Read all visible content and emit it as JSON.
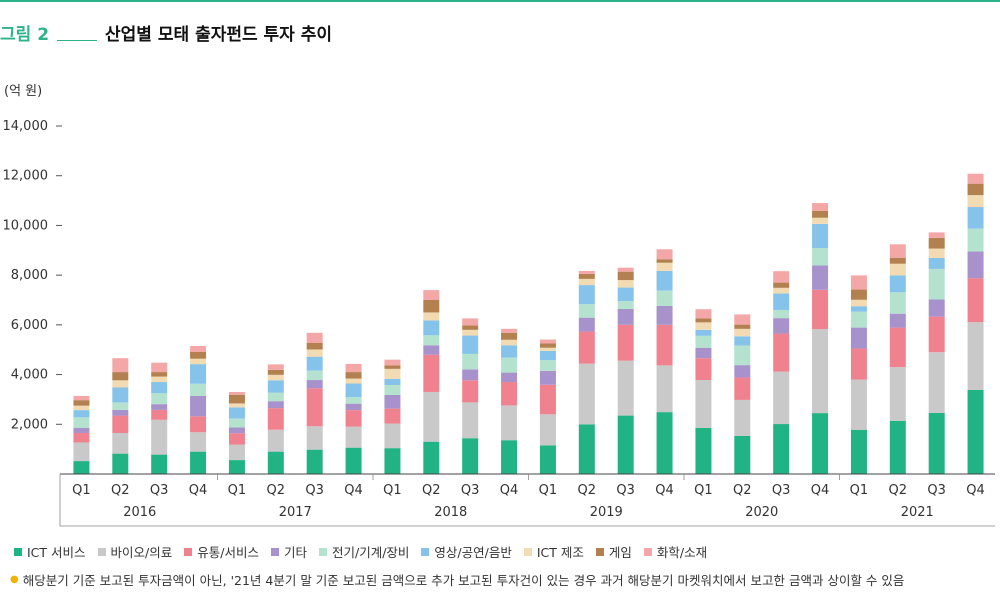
{
  "figure": {
    "label": "그림 2",
    "title": "산업별 모태 출자펀드 투자 추이",
    "unit": "(억 원)",
    "footnote": "해당분기 기준 보고된 투자금액이 아닌, '21년 4분기 말 기준 보고된 금액으로 추가 보고된 투자건이 있는 경우 과거 해당분기 마켓워치에서 보고한 금액과 상이할 수 있음",
    "accent_color": "#2db38a",
    "footnote_bullet_color": "#f0b400"
  },
  "chart_data": {
    "type": "bar",
    "stacked": true,
    "title": "산업별 모태 출자펀드 투자 추이",
    "ylabel": "(억 원)",
    "ylim": [
      0,
      14000
    ],
    "yticks": [
      2000,
      4000,
      6000,
      8000,
      10000,
      12000,
      14000
    ],
    "ytick_labels": [
      "2,000",
      "4,000",
      "6,000",
      "8,000",
      "10,000",
      "12,000",
      "14,000"
    ],
    "categories": [
      "Q1",
      "Q2",
      "Q3",
      "Q4",
      "Q1",
      "Q2",
      "Q3",
      "Q4",
      "Q1",
      "Q2",
      "Q3",
      "Q4",
      "Q1",
      "Q2",
      "Q3",
      "Q4",
      "Q1",
      "Q2",
      "Q3",
      "Q4",
      "Q1",
      "Q2",
      "Q3",
      "Q4"
    ],
    "years": [
      "2016",
      "2017",
      "2018",
      "2019",
      "2020",
      "2021"
    ],
    "grid": false,
    "legend_position": "bottom",
    "series": [
      {
        "name": "ICT 서비스",
        "color": "#22b384",
        "values": [
          520,
          820,
          780,
          900,
          560,
          900,
          980,
          1060,
          1040,
          1300,
          1440,
          1360,
          1150,
          2000,
          2350,
          2490,
          1850,
          1530,
          2010,
          2450,
          1780,
          2140,
          2460,
          3380
        ]
      },
      {
        "name": "바이오/의료",
        "color": "#c9c9c9",
        "values": [
          750,
          830,
          1400,
          780,
          620,
          880,
          940,
          850,
          990,
          2000,
          1440,
          1400,
          1250,
          2440,
          2210,
          1880,
          1930,
          1450,
          2110,
          3380,
          2020,
          2160,
          2440,
          2730
        ]
      },
      {
        "name": "유통/서비스",
        "color": "#f0828f",
        "values": [
          380,
          700,
          400,
          640,
          460,
          870,
          1530,
          660,
          600,
          1500,
          890,
          940,
          1190,
          1290,
          1440,
          1630,
          880,
          900,
          1530,
          1580,
          1250,
          1590,
          1430,
          1770
        ]
      },
      {
        "name": "기타",
        "color": "#a892cc",
        "values": [
          200,
          230,
          230,
          820,
          230,
          280,
          330,
          260,
          550,
          380,
          440,
          380,
          560,
          560,
          640,
          760,
          420,
          500,
          620,
          980,
          840,
          560,
          690,
          1070
        ]
      },
      {
        "name": "전기/기계/장비",
        "color": "#b4e2cf",
        "values": [
          430,
          300,
          440,
          490,
          360,
          340,
          380,
          260,
          400,
          400,
          620,
          600,
          430,
          540,
          320,
          620,
          480,
          790,
          330,
          700,
          640,
          860,
          1230,
          920
        ]
      },
      {
        "name": "영상/공연/음반",
        "color": "#86c3ea",
        "values": [
          290,
          600,
          450,
          790,
          450,
          500,
          560,
          550,
          250,
          600,
          740,
          500,
          370,
          770,
          540,
          790,
          240,
          370,
          660,
          970,
          220,
          680,
          440,
          870
        ]
      },
      {
        "name": "ICT 제조",
        "color": "#f2dbb3",
        "values": [
          180,
          290,
          220,
          220,
          160,
          220,
          290,
          200,
          400,
          320,
          230,
          220,
          130,
          250,
          300,
          330,
          300,
          300,
          230,
          250,
          260,
          470,
          380,
          480
        ]
      },
      {
        "name": "게임",
        "color": "#b3804f",
        "values": [
          220,
          330,
          180,
          270,
          350,
          200,
          260,
          260,
          140,
          500,
          180,
          280,
          170,
          200,
          340,
          140,
          160,
          170,
          210,
          280,
          410,
          240,
          430,
          460
        ]
      },
      {
        "name": "화학/소재",
        "color": "#f4a7a7",
        "values": [
          170,
          560,
          380,
          240,
          110,
          220,
          410,
          330,
          230,
          400,
          280,
          160,
          160,
          120,
          160,
          400,
          370,
          410,
          460,
          310,
          570,
          540,
          220,
          400
        ]
      }
    ]
  }
}
